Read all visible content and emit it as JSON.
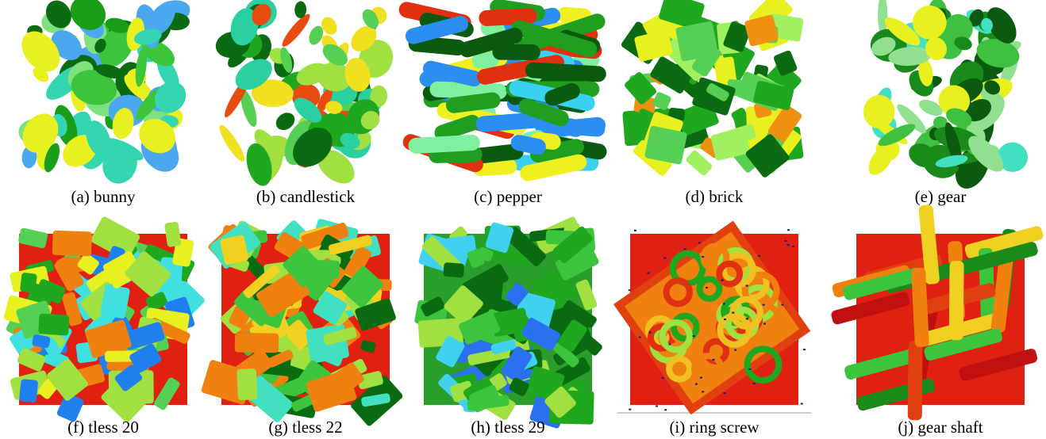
{
  "panels": [
    {
      "caption": "(a) bunny"
    },
    {
      "caption": "(b) candlestick"
    },
    {
      "caption": "(c) pepper"
    },
    {
      "caption": "(d) brick"
    },
    {
      "caption": "(e) gear"
    },
    {
      "caption": "(f) tless 20"
    },
    {
      "caption": "(g) tless 22"
    },
    {
      "caption": "(h) tless 29"
    },
    {
      "caption": "(i) ring screw"
    },
    {
      "caption": "(j) gear shaft"
    }
  ]
}
